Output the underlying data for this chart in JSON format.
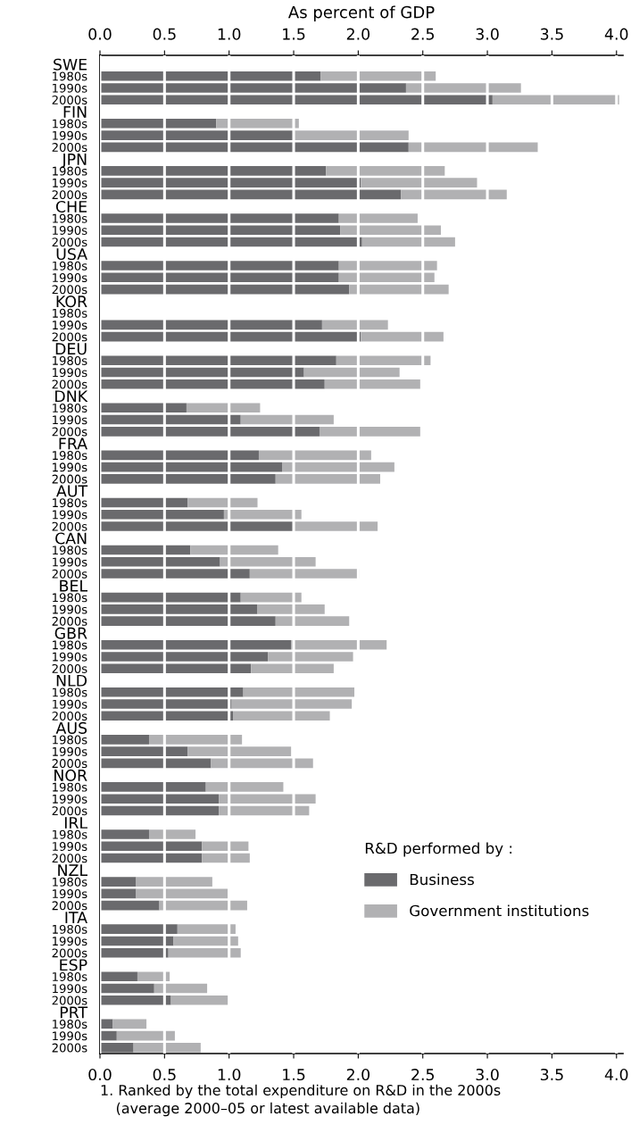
{
  "chart_data": {
    "type": "bar",
    "orientation": "horizontal",
    "stacked": true,
    "grid": "x",
    "legend": "bottom right",
    "legend_title": "R&D performed by :",
    "x2label": "As percent of GDP",
    "categories": [
      "SWE",
      "1980s",
      "1990s",
      "2000s",
      "FIN",
      "1980s",
      "1990s",
      "2000s",
      "JPN",
      "1980s",
      "1990s",
      "2000s",
      "CHE",
      "1980s",
      "1990s",
      "2000s",
      "USA",
      "1980s",
      "1990s",
      "2000s",
      "KOR",
      "1980s",
      "1990s",
      "2000s",
      "DEU",
      "1980s",
      "1990s",
      "2000s",
      "DNK",
      "1980s",
      "1990s",
      "2000s",
      "FRA",
      "1980s",
      "1990s",
      "2000s",
      "AUT",
      "1980s",
      "1990s",
      "2000s",
      "CAN",
      "1980s",
      "1990s",
      "2000s",
      "BEL",
      "1980s",
      "1990s",
      "2000s",
      "GBR",
      "1980s",
      "1990s",
      "2000s",
      "NLD",
      "1980s",
      "1990s",
      "2000s",
      "AUS",
      "1980s",
      "1990s",
      "2000s",
      "NOR",
      "1980s",
      "1990s",
      "2000s",
      "IRL",
      "1980s",
      "1990s",
      "2000s",
      "NZL",
      "1980s",
      "1990s",
      "2000s",
      "ITA",
      "1980s",
      "1990s",
      "2000s",
      "ESP",
      "1980s",
      "1990s",
      "2000s",
      "PRT",
      "1980s",
      "1990s",
      "2000s"
    ],
    "xlim": [
      0,
      4.05
    ],
    "xticks": [
      {
        "value": 0,
        "label": "0.0"
      },
      {
        "value": 0.5,
        "label": "0.5"
      },
      {
        "value": 1,
        "label": "1.0"
      },
      {
        "value": 1.5,
        "label": "1.5"
      },
      {
        "value": 2,
        "label": "2.0"
      },
      {
        "value": 2.5,
        "label": "2.5"
      },
      {
        "value": 3,
        "label": "3.0"
      },
      {
        "value": 3.5,
        "label": "3.5"
      },
      {
        "value": 4,
        "label": "4.0"
      }
    ],
    "x2lim": [
      0,
      4.05
    ],
    "x2ticks": [
      {
        "value": 0,
        "label": "0.0"
      },
      {
        "value": 0.5,
        "label": "0.5"
      },
      {
        "value": 1,
        "label": "1.0"
      },
      {
        "value": 1.5,
        "label": "1.5"
      },
      {
        "value": 2,
        "label": "2.0"
      },
      {
        "value": 2.5,
        "label": "2.5"
      },
      {
        "value": 3,
        "label": "3.0"
      },
      {
        "value": 3.5,
        "label": "3.5"
      },
      {
        "value": 4,
        "label": "4.0"
      }
    ],
    "annotations": [
      "1. Ranked by the total expenditure on R&D in the 2000s",
      "(average 2000–05 or latest available data)"
    ],
    "series": [
      {
        "name": "Business",
        "color": "#6a6a6d",
        "values": [
          null,
          1.71,
          2.37,
          3.04,
          null,
          0.9,
          1.51,
          2.39,
          null,
          1.75,
          2.02,
          2.33,
          null,
          1.85,
          1.86,
          2.03,
          null,
          1.85,
          1.85,
          1.93,
          null,
          null,
          1.72,
          2.02,
          null,
          1.83,
          1.58,
          1.74,
          null,
          0.67,
          1.09,
          1.7,
          null,
          1.23,
          1.41,
          1.36,
          null,
          0.68,
          0.96,
          1.51,
          null,
          0.7,
          0.93,
          1.16,
          null,
          1.09,
          1.22,
          1.36,
          null,
          1.48,
          1.3,
          1.17,
          null,
          1.11,
          1.02,
          1.03,
          null,
          0.38,
          0.68,
          0.86,
          null,
          0.82,
          0.92,
          0.92,
          null,
          0.38,
          0.79,
          0.79,
          null,
          0.28,
          0.28,
          0.46,
          null,
          0.6,
          0.57,
          0.53,
          null,
          0.29,
          0.42,
          0.55,
          null,
          0.1,
          0.13,
          0.26
        ]
      },
      {
        "name": "Government institutions",
        "color": "#b1b1b3",
        "values": [
          null,
          0.89,
          0.89,
          0.98,
          null,
          0.64,
          0.88,
          1.0,
          null,
          0.92,
          0.9,
          0.82,
          null,
          0.61,
          0.78,
          0.72,
          null,
          0.76,
          0.74,
          0.77,
          null,
          null,
          0.51,
          0.64,
          null,
          0.73,
          0.74,
          0.74,
          null,
          0.57,
          0.72,
          0.78,
          null,
          0.87,
          0.87,
          0.81,
          null,
          0.54,
          0.6,
          0.64,
          null,
          0.68,
          0.74,
          0.85,
          null,
          0.47,
          0.52,
          0.57,
          null,
          0.74,
          0.66,
          0.64,
          null,
          0.86,
          0.93,
          0.75,
          null,
          0.72,
          0.8,
          0.79,
          null,
          0.6,
          0.75,
          0.7,
          null,
          0.36,
          0.36,
          0.37,
          null,
          0.59,
          0.71,
          0.68,
          null,
          0.45,
          0.5,
          0.56,
          null,
          0.25,
          0.41,
          0.45,
          null,
          0.26,
          0.45,
          0.52
        ]
      }
    ]
  }
}
